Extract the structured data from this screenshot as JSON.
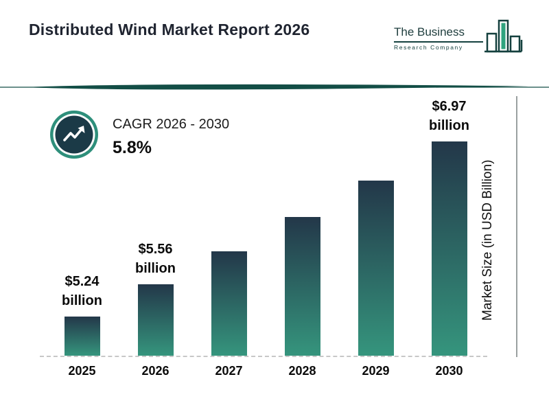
{
  "header": {
    "title": "Distributed Wind Market Report 2026"
  },
  "logo": {
    "name_line": "The Business",
    "sub_line": "Research Company"
  },
  "cagr": {
    "label": "CAGR 2026 - 2030",
    "value": "5.8%"
  },
  "colors": {
    "accent_teal": "#2E8F7B",
    "dark_teal": "#134E46",
    "icon_inner": "#1B3A47",
    "bar_top": "#233749",
    "bar_bottom": "#35957D",
    "logo_fill_green": "#2FA37E"
  },
  "chart_data": {
    "type": "bar",
    "title": "Distributed Wind Market Report 2026",
    "categories": [
      "2025",
      "2026",
      "2027",
      "2028",
      "2029",
      "2030"
    ],
    "values": [
      5.24,
      5.56,
      5.88,
      6.22,
      6.58,
      6.97
    ],
    "labeled_points": [
      {
        "index": 0,
        "value_text": "$5.24",
        "unit_text": "billion"
      },
      {
        "index": 1,
        "value_text": "$5.56",
        "unit_text": "billion"
      },
      {
        "index": 5,
        "value_text": "$6.97",
        "unit_text": "billion"
      }
    ],
    "xlabel": "",
    "ylabel": "Market Size (in USD Billion)",
    "ylim": [
      4.85,
      7.5
    ],
    "grid": false,
    "legend": false,
    "cagr_note": "CAGR 2026 - 2030: 5.8%"
  }
}
